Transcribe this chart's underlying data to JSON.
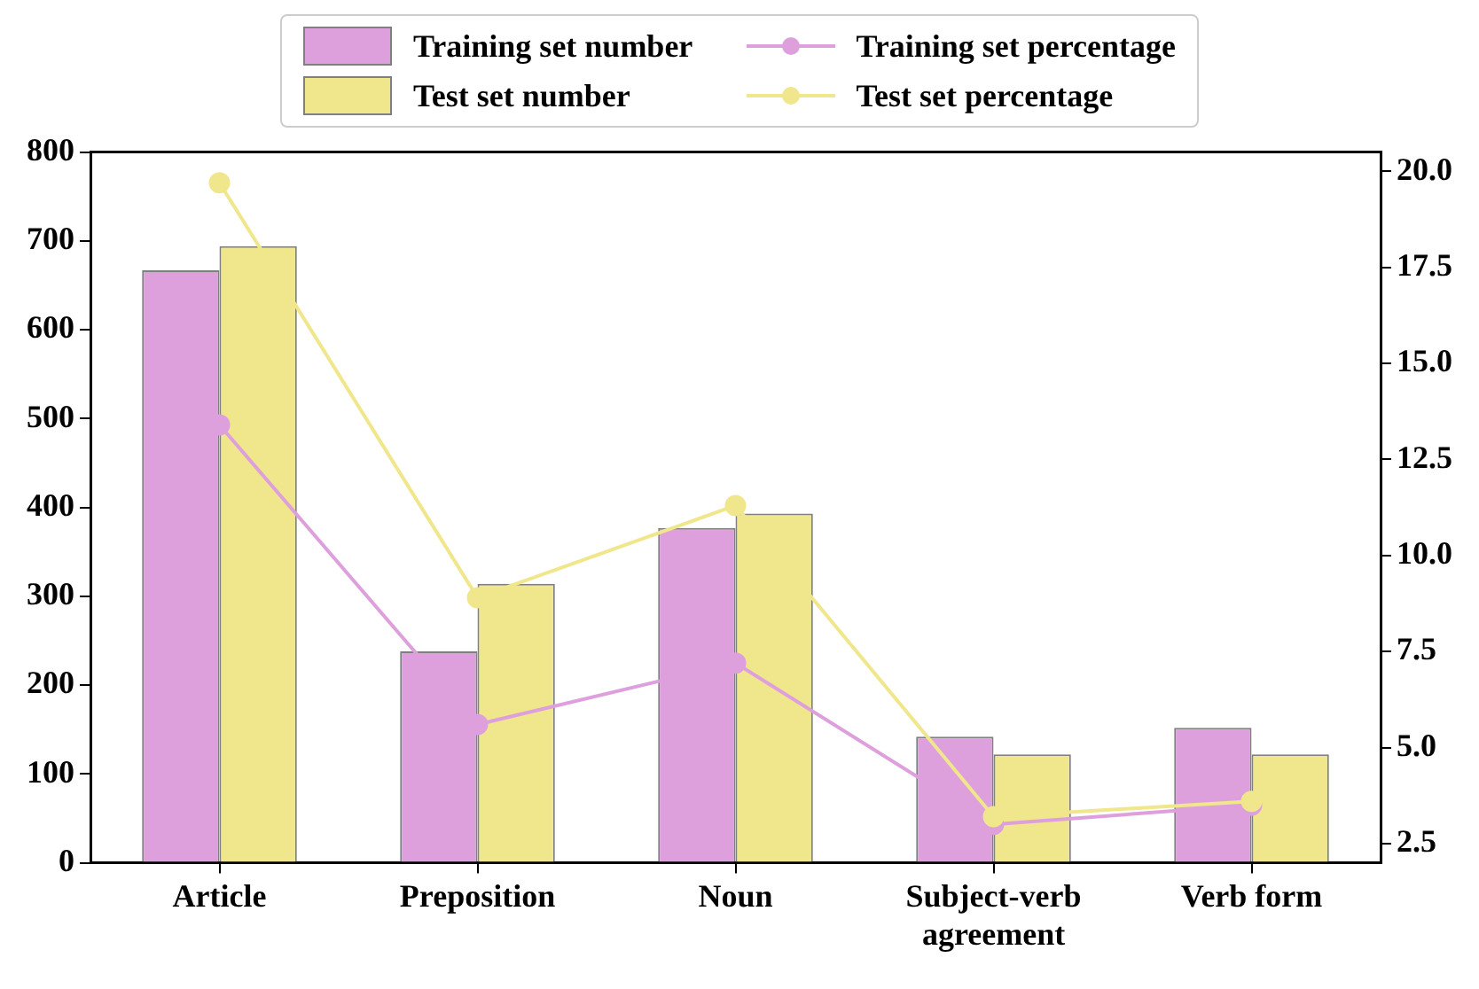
{
  "chart_data": {
    "type": "bar",
    "categories": [
      "Article",
      "Preposition",
      "Noun",
      "Subject-verb agreement",
      "Verb form"
    ],
    "series": [
      {
        "name": "Training set number",
        "color": "#dda0dd",
        "values": [
          667,
          238,
          377,
          142,
          152
        ]
      },
      {
        "name": "Test set number",
        "color": "#f0e68c",
        "values": [
          694,
          314,
          393,
          122,
          122
        ]
      },
      {
        "name": "Training set percentage",
        "type": "line",
        "axis": "y2",
        "color": "#dda0dd",
        "values": [
          13.4,
          5.6,
          7.2,
          3.0,
          3.5
        ]
      },
      {
        "name": "Test set percentage",
        "type": "line",
        "axis": "y2",
        "color": "#f0e68c",
        "values": [
          19.7,
          8.9,
          11.3,
          3.2,
          3.6
        ]
      }
    ],
    "ylim": [
      0,
      800
    ],
    "yticks": [
      0,
      100,
      200,
      300,
      400,
      500,
      600,
      700,
      800
    ],
    "y2lim": [
      2.0,
      20.5
    ],
    "y2ticks": [
      2.5,
      {
        "value": 5,
        "label": "5.0"
      },
      7.5,
      {
        "value": 10,
        "label": "10.0"
      },
      12.5,
      {
        "value": 15,
        "label": "15.0"
      },
      17.5,
      {
        "value": 20,
        "label": "20.0"
      }
    ],
    "grid": false,
    "legend": "top",
    "marker": "circle"
  }
}
